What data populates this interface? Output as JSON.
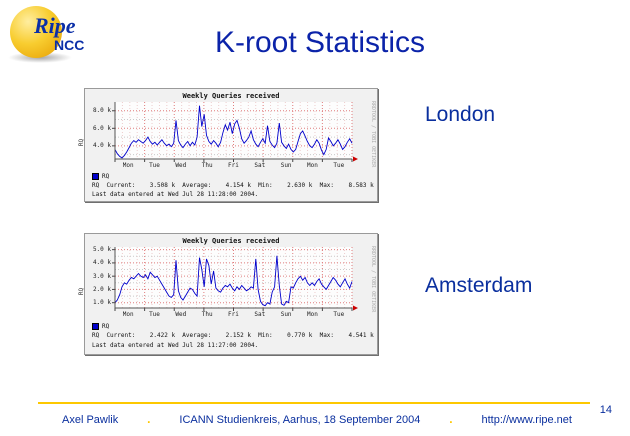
{
  "slide": {
    "title": "K-root Statistics",
    "page_number": "14",
    "title_color": "#0b23a9",
    "accent_color": "#fdc800",
    "logo": {
      "line1": "Ripe",
      "line2": "NCC"
    },
    "footer": {
      "author": "Axel Pawlik",
      "separator": ".",
      "event": "ICANN Studienkreis, Aarhus, 18 September 2004",
      "url": "http://www.ripe.net"
    }
  },
  "labels": {
    "graph1": "London",
    "graph2": "Amsterdam"
  },
  "chart_data": [
    {
      "type": "line",
      "location": "London",
      "title": "Weekly Queries received",
      "ylabel": "RQ",
      "legend": [
        "RQ"
      ],
      "line_color": "#0000cc",
      "x_tick_labels": [
        "Mon",
        "Tue",
        "Wed",
        "Thu",
        "Fri",
        "Sat",
        "Sun",
        "Mon",
        "Tue"
      ],
      "x_days": 8,
      "y_ticks": [
        4,
        6,
        8
      ],
      "y_tick_labels": [
        "4.0 k",
        "6.0 k",
        "8.0 k"
      ],
      "y_minor": [
        3,
        5,
        7
      ],
      "ylim": [
        2.5,
        9.0
      ],
      "unit": "k queries",
      "values_k": [
        3.6,
        3.1,
        2.8,
        2.63,
        2.9,
        3.3,
        3.8,
        4.3,
        4.6,
        4.4,
        4.7,
        4.5,
        4.3,
        4.6,
        5.0,
        4.5,
        4.2,
        4.4,
        4.1,
        4.4,
        4.7,
        4.3,
        4.0,
        4.2,
        3.9,
        4.3,
        6.9,
        4.6,
        4.1,
        3.8,
        4.2,
        4.5,
        4.0,
        4.4,
        4.1,
        5.0,
        8.58,
        6.2,
        7.6,
        5.2,
        4.5,
        4.2,
        4.6,
        4.3,
        3.9,
        4.4,
        5.5,
        6.4,
        5.8,
        6.7,
        5.4,
        6.5,
        6.9,
        6.0,
        4.8,
        4.3,
        4.6,
        5.0,
        5.7,
        4.7,
        4.2,
        3.9,
        4.4,
        4.8,
        4.3,
        6.3,
        4.5,
        4.1,
        3.8,
        4.3,
        6.6,
        4.4,
        4.0,
        3.7,
        4.2,
        3.6,
        3.3,
        3.6,
        4.5,
        5.4,
        5.7,
        5.1,
        4.5,
        4.0,
        3.8,
        4.2,
        4.7,
        4.3,
        3.5,
        3.0,
        3.6,
        4.9,
        4.5,
        4.0,
        4.3,
        4.7,
        4.2,
        3.6,
        3.9,
        4.4,
        4.8,
        4.3
      ],
      "stats": {
        "series": "RQ",
        "current": "3.508 k",
        "average": "4.154 k",
        "min": "2.630 k",
        "max": "8.583 k"
      },
      "last_data": "Last data entered at Wed Jul 28 11:28:00 2004.",
      "signature": "RRDTOOL / TOBI OETIKER"
    },
    {
      "type": "line",
      "location": "Amsterdam",
      "title": "Weekly Queries received",
      "ylabel": "RQ",
      "legend": [
        "RQ"
      ],
      "line_color": "#0000cc",
      "x_tick_labels": [
        "Mon",
        "Tue",
        "Wed",
        "Thu",
        "Fri",
        "Sat",
        "Sun",
        "Mon",
        "Tue"
      ],
      "x_days": 8,
      "y_ticks": [
        1,
        2,
        3,
        4,
        5
      ],
      "y_tick_labels": [
        "1.0 k",
        "2.0 k",
        "3.0 k",
        "4.0 k",
        "5.0 k"
      ],
      "y_minor": [
        1.5,
        2.5,
        3.5,
        4.5
      ],
      "ylim": [
        0.6,
        5.2
      ],
      "unit": "k queries",
      "values_k": [
        1.0,
        1.2,
        1.6,
        2.2,
        2.5,
        2.4,
        2.7,
        2.9,
        2.8,
        3.0,
        3.2,
        3.0,
        2.9,
        3.1,
        2.8,
        3.3,
        3.1,
        2.9,
        3.0,
        2.7,
        2.4,
        2.1,
        1.8,
        1.5,
        1.4,
        1.6,
        4.2,
        1.9,
        1.4,
        1.2,
        1.5,
        1.8,
        2.1,
        2.0,
        1.7,
        1.5,
        4.4,
        3.5,
        2.2,
        4.3,
        3.8,
        2.4,
        3.4,
        2.1,
        1.9,
        1.8,
        2.1,
        2.3,
        2.2,
        2.4,
        2.1,
        1.9,
        2.2,
        2.0,
        2.3,
        2.1,
        1.9,
        2.0,
        2.2,
        2.1,
        4.3,
        2.0,
        1.1,
        0.85,
        0.77,
        1.0,
        0.9,
        1.8,
        2.2,
        4.54,
        2.3,
        0.9,
        0.8,
        1.1,
        1.0,
        2.2,
        2.1,
        2.5,
        2.8,
        3.0,
        2.7,
        2.9,
        2.5,
        2.3,
        2.5,
        2.3,
        2.6,
        2.8,
        2.4,
        2.2,
        2.0,
        2.3,
        2.6,
        2.9,
        2.7,
        2.4,
        2.2,
        2.5,
        2.8,
        2.4,
        2.1,
        2.6
      ],
      "stats": {
        "series": "RQ",
        "current": "2.422 k",
        "average": "2.152 k",
        "min": "0.770 k",
        "max": "4.541 k"
      },
      "last_data": "Last data entered at Wed Jul 28 11:27:00 2004.",
      "signature": "RRDTOOL / TOBI OETIKER"
    }
  ]
}
